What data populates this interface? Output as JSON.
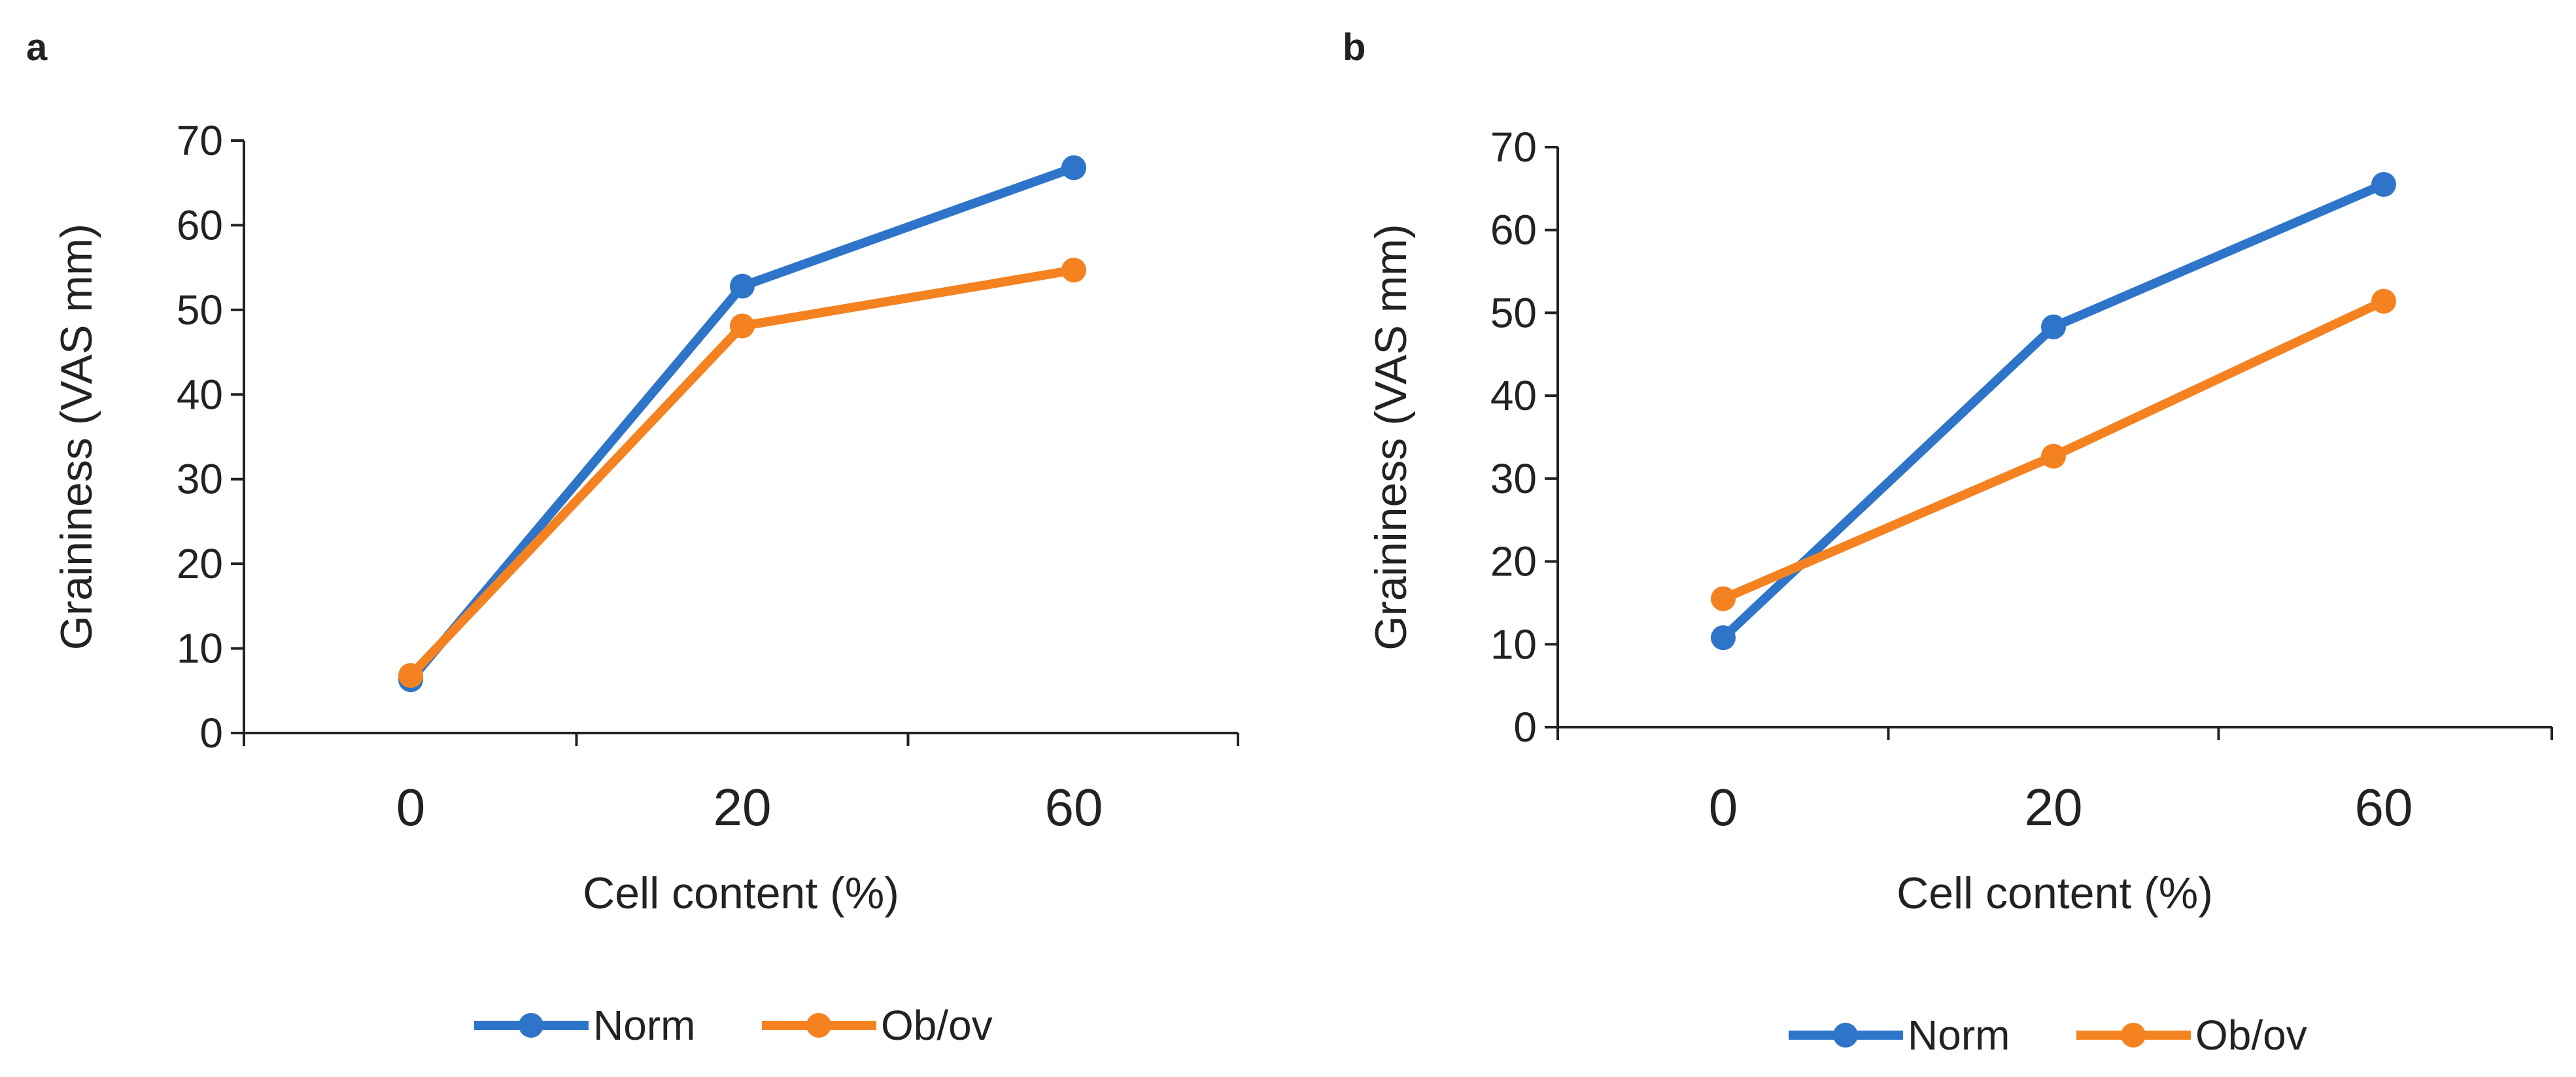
{
  "colors": {
    "norm": "#2E75C9",
    "obov": "#F58220",
    "axis": "#222222"
  },
  "chart_data": [
    {
      "panel": "a",
      "type": "line",
      "categories": [
        "0",
        "20",
        "60"
      ],
      "xlabel": "Cell content (%)",
      "ylabel": "Graininess (VAS mm)",
      "ylim": [
        0,
        70
      ],
      "yticks": [
        "0",
        "10",
        "20",
        "30",
        "40",
        "50",
        "60",
        "70"
      ],
      "grid": false,
      "legend_position": "bottom",
      "series": [
        {
          "name": "Norm",
          "color": "#2E75C9",
          "values": [
            6.3,
            52.8,
            66.8
          ]
        },
        {
          "name": "Ob/ov",
          "color": "#F58220",
          "values": [
            6.8,
            48.1,
            54.7
          ]
        }
      ]
    },
    {
      "panel": "b",
      "type": "line",
      "categories": [
        "0",
        "20",
        "60"
      ],
      "xlabel": "Cell content (%)",
      "ylabel": "Graininess (VAS mm)",
      "ylim": [
        0,
        70
      ],
      "yticks": [
        "0",
        "10",
        "20",
        "30",
        "40",
        "50",
        "60",
        "70"
      ],
      "grid": false,
      "legend_position": "bottom",
      "series": [
        {
          "name": "Norm",
          "color": "#2E75C9",
          "values": [
            10.8,
            48.3,
            65.5
          ]
        },
        {
          "name": "Ob/ov",
          "color": "#F58220",
          "values": [
            15.5,
            32.7,
            51.4
          ]
        }
      ]
    }
  ]
}
